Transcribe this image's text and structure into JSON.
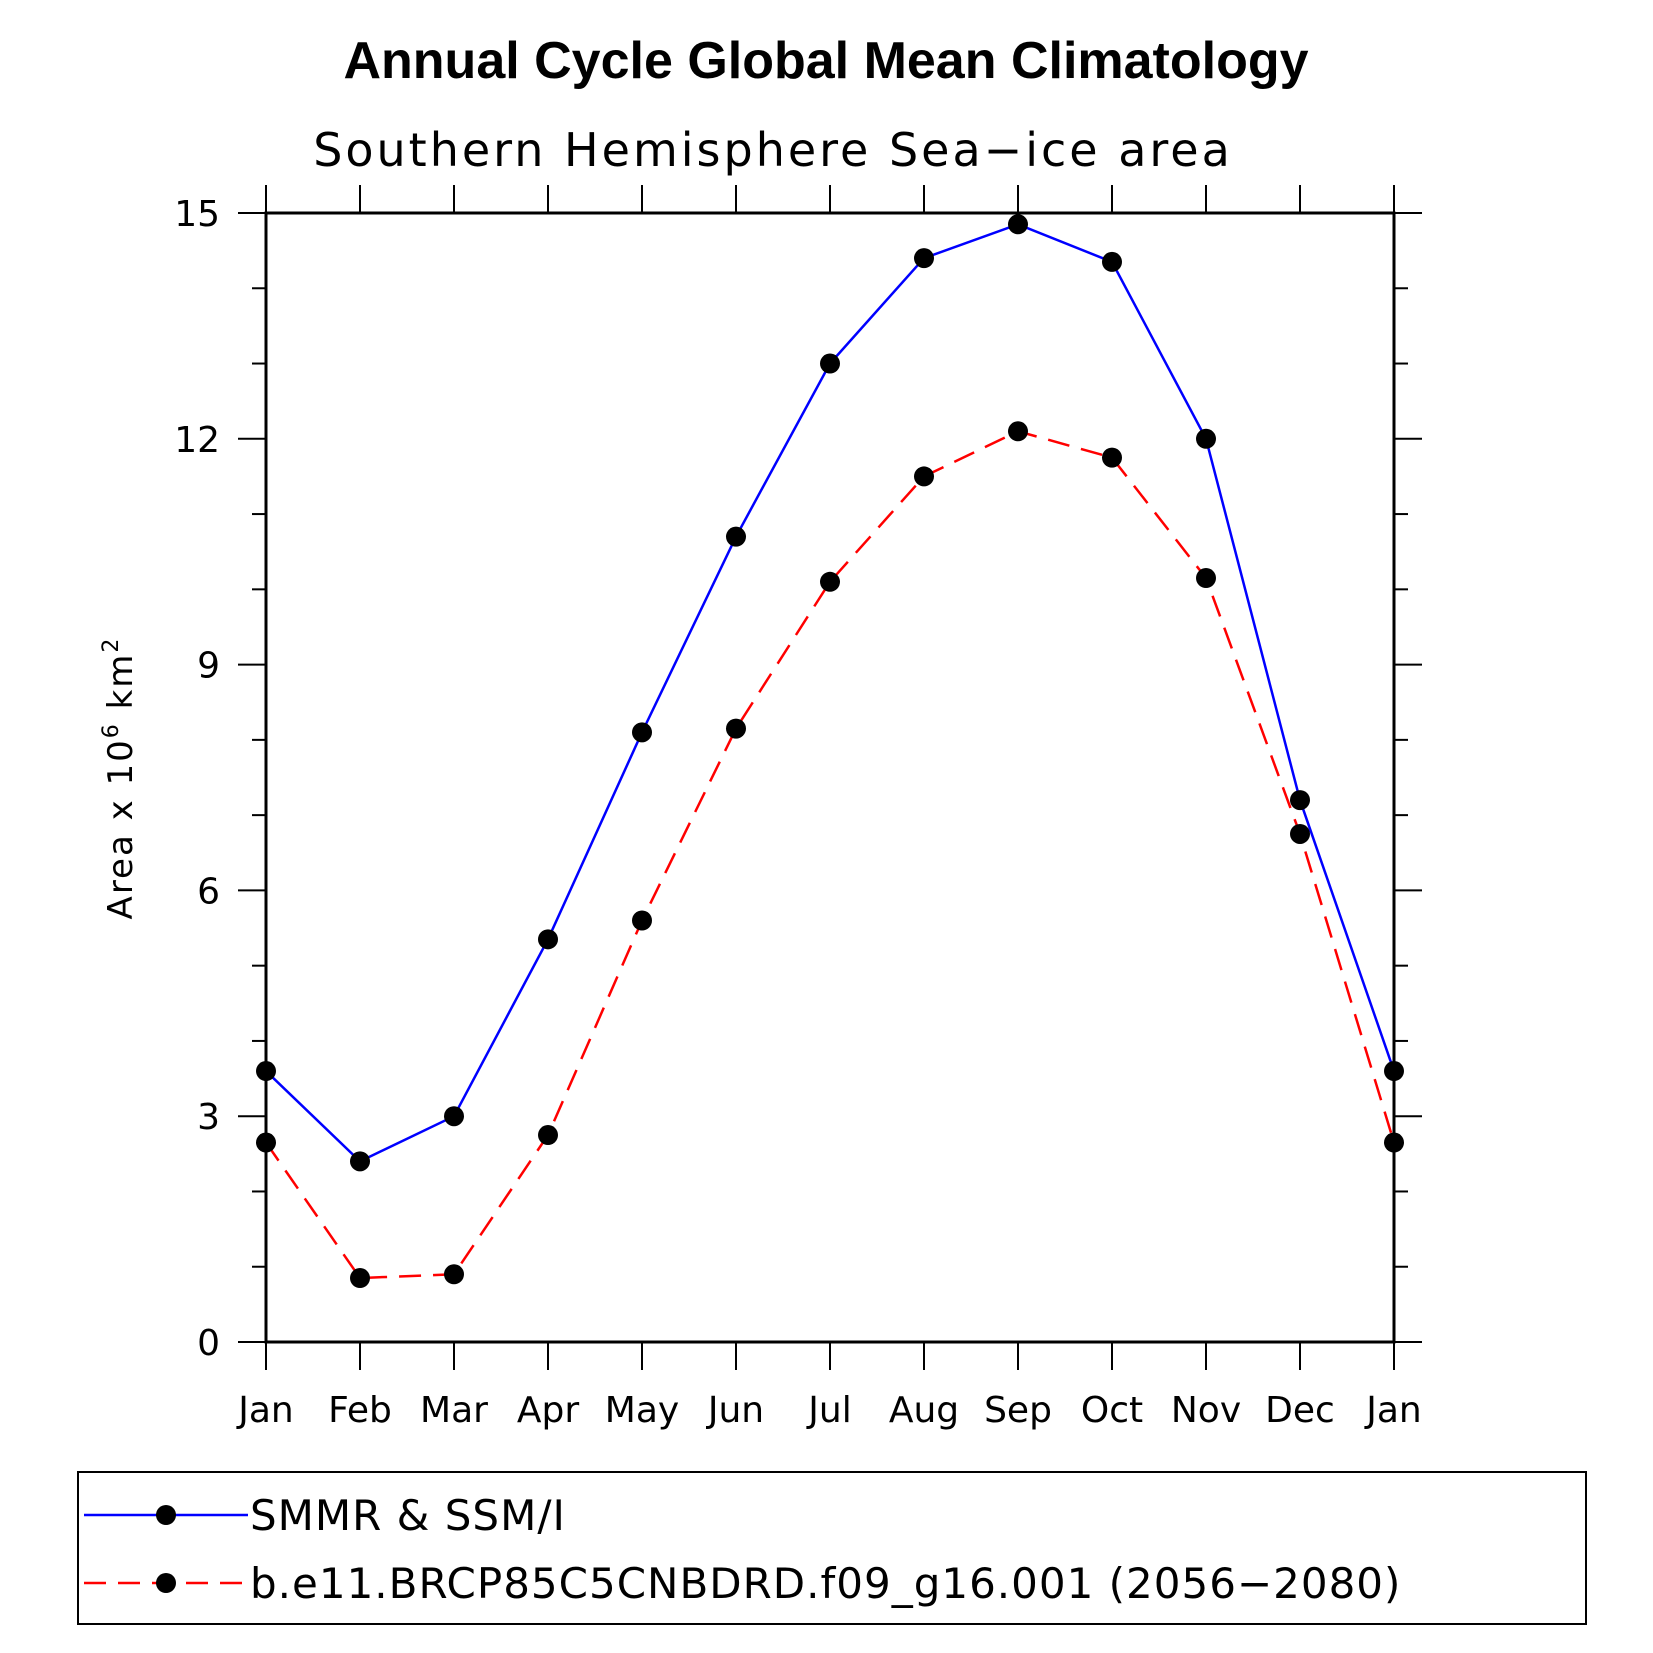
{
  "chart_data": {
    "type": "line",
    "title": "Annual Cycle Global Mean Climatology",
    "subtitle": "Southern Hemisphere Sea−ice area",
    "xlabel": "",
    "ylabel": {
      "prefix": "Area x 10",
      "exp1": "6",
      "mid": " km",
      "exp2": "2"
    },
    "categories": [
      "Jan",
      "Feb",
      "Mar",
      "Apr",
      "May",
      "Jun",
      "Jul",
      "Aug",
      "Sep",
      "Oct",
      "Nov",
      "Dec",
      "Jan"
    ],
    "ylim": [
      0,
      15
    ],
    "yticks": [
      0,
      3,
      6,
      9,
      12,
      15
    ],
    "ytick_labels": [
      "0",
      "3",
      "6",
      "9",
      "12",
      "15"
    ],
    "series": [
      {
        "name": "SMMR & SSM/I",
        "color": "#0000ff",
        "dash": "solid",
        "values": [
          3.6,
          2.4,
          3.0,
          5.35,
          8.1,
          10.7,
          13.0,
          14.4,
          14.85,
          14.35,
          12.0,
          7.2,
          3.6
        ]
      },
      {
        "name": "b.e11.BRCP85C5CNBDRD.f09_g16.001 (2056−2080)",
        "color": "#ff0000",
        "dash": "dashed",
        "values": [
          2.65,
          0.85,
          0.9,
          2.75,
          5.6,
          8.15,
          10.1,
          11.5,
          12.1,
          11.75,
          10.15,
          6.75,
          2.65
        ]
      }
    ],
    "legend_position": "bottom"
  }
}
